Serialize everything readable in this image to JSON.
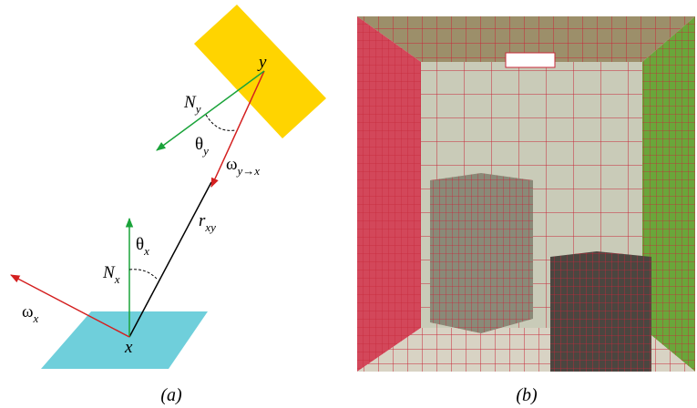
{
  "panel_a": {
    "point_y": "y",
    "normal_y": {
      "base": "N",
      "sub": "y"
    },
    "theta_y": {
      "base": "θ",
      "sub": "y"
    },
    "omega_yx": {
      "base": "ω",
      "sub": "y→x"
    },
    "r_xy": {
      "base": "r",
      "sub": "xy"
    },
    "theta_x": {
      "base": "θ",
      "sub": "x"
    },
    "normal_x": {
      "base": "N",
      "sub": "x"
    },
    "omega_x": {
      "base": "ω",
      "sub": "x"
    },
    "point_x": "x",
    "caption": "(a)"
  },
  "panel_b": {
    "caption": "(b)"
  }
}
